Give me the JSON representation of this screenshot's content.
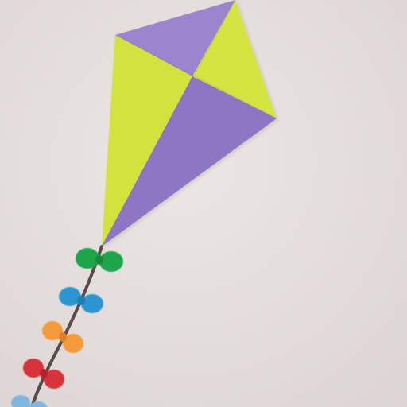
{
  "colors": {
    "wall": "#e7e1df",
    "wall_shade": "#d9d2d0",
    "kite_purple": "#9d84cf",
    "kite_purple_dark": "#8c73c2",
    "kite_yellow": "#d3e23e",
    "kite_yellow_light": "#dbe84a",
    "string": "#5a4c48",
    "bow_green": "#1ea64a",
    "bow_blue": "#2f95d3",
    "bow_orange": "#f39a3a",
    "bow_red": "#d8303a",
    "bow_light_blue": "#7fb6e0"
  },
  "scene": {
    "subject": "paper-kite",
    "tail_bows": [
      "green",
      "blue",
      "orange",
      "red",
      "light-blue"
    ]
  }
}
